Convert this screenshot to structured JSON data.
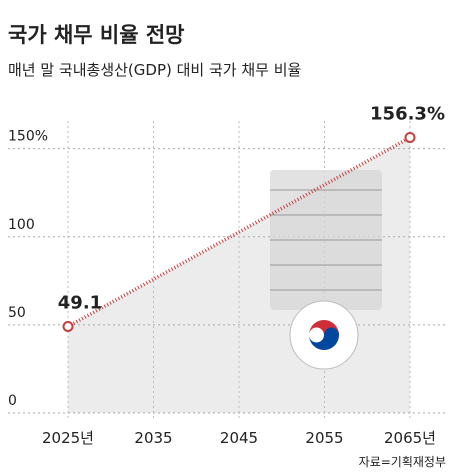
{
  "chart_data": {
    "type": "line",
    "title": "국가 채무 비율 전망",
    "subtitle": "매년 말 국내총생산(GDP) 대비 국가 채무 비율",
    "source": "자료=기획재정부",
    "x": [
      2025,
      2065
    ],
    "values": [
      49.1,
      156.3
    ],
    "value_labels": [
      "49.1",
      "156.3%"
    ],
    "color": "#c4403f",
    "xlim": [
      2025,
      2065
    ],
    "xticks": [
      {
        "value": 2025,
        "label": "2025년"
      },
      2035,
      2045,
      2055,
      {
        "value": 2065,
        "label": "2065년"
      }
    ],
    "ylim": [
      0,
      160
    ],
    "yticks": [
      0,
      50,
      100,
      {
        "value": 150,
        "label": "150%"
      }
    ],
    "grid": true
  }
}
